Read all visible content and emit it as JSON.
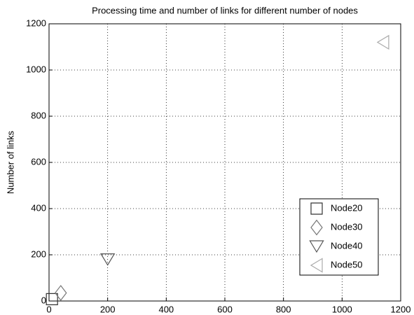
{
  "chart_data": {
    "type": "scatter",
    "title": "Processing time and number of links for different number of nodes",
    "y_label": "Number of links",
    "xlim": [
      0,
      1200
    ],
    "xticks": [
      0,
      200,
      400,
      600,
      800,
      1000,
      1200
    ],
    "ylim": [
      0,
      1200
    ],
    "yticks": [
      0,
      200,
      400,
      600,
      800,
      1000,
      1200
    ],
    "grid": true,
    "legend": "lower right",
    "series": [
      {
        "name": "Node20",
        "color": "#333333",
        "marker": "square",
        "x": [
          10
        ],
        "values": [
          8
        ]
      },
      {
        "name": "Node30",
        "color": "#777777",
        "marker": "diamond",
        "x": [
          40
        ],
        "values": [
          35
        ]
      },
      {
        "name": "Node40",
        "color": "#555555",
        "marker": "triangle-down",
        "x": [
          200
        ],
        "values": [
          180
        ]
      },
      {
        "name": "Node50",
        "color": "#aaaaaa",
        "marker": "triangle-left",
        "x": [
          1140
        ],
        "values": [
          1120
        ]
      }
    ]
  }
}
